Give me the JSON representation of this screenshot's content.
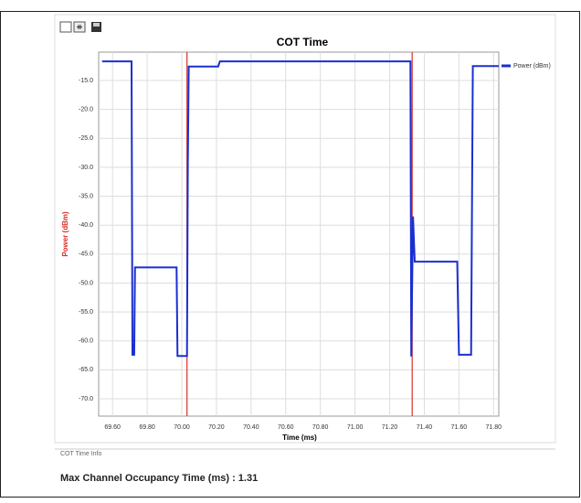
{
  "chart_data": {
    "type": "line",
    "title": "COT Time",
    "x_label": "Time (ms)",
    "y_label": "Power (dBm)",
    "xlim": [
      69.52,
      71.83
    ],
    "xticks": [
      {
        "value": 69.6,
        "label": "69.60"
      },
      {
        "value": 69.8,
        "label": "69.80"
      },
      {
        "value": 70.0,
        "label": "70.00"
      },
      {
        "value": 70.2,
        "label": "70.20"
      },
      {
        "value": 70.4,
        "label": "70.40"
      },
      {
        "value": 70.6,
        "label": "70.60"
      },
      {
        "value": 70.8,
        "label": "70.80"
      },
      {
        "value": 71.0,
        "label": "71.00"
      },
      {
        "value": 71.2,
        "label": "71.20"
      },
      {
        "value": 71.4,
        "label": "71.40"
      },
      {
        "value": 71.6,
        "label": "71.60"
      },
      {
        "value": 71.8,
        "label": "71.80"
      }
    ],
    "ylim": [
      -73,
      -10.1
    ],
    "yticks": [
      {
        "value": -15,
        "label": "-15.0"
      },
      {
        "value": -20,
        "label": "-20.0"
      },
      {
        "value": -25,
        "label": "-25.0"
      },
      {
        "value": -30,
        "label": "-30.0"
      },
      {
        "value": -35,
        "label": "-35.0"
      },
      {
        "value": -40,
        "label": "-40.0"
      },
      {
        "value": -45,
        "label": "-45.0"
      },
      {
        "value": -50,
        "label": "-50.0"
      },
      {
        "value": -55,
        "label": "-55.0"
      },
      {
        "value": -60,
        "label": "-60.0"
      },
      {
        "value": -65,
        "label": "-65.0"
      },
      {
        "value": -70,
        "label": "-70.0"
      }
    ],
    "grid": true,
    "legend": "right",
    "series": [
      {
        "name": "Power (dBm)",
        "color": "#1a2fd0",
        "x": [
          69.54,
          69.71,
          69.715,
          69.725,
          69.73,
          69.97,
          69.975,
          70.03,
          70.035,
          70.04,
          70.21,
          70.22,
          71.32,
          71.325,
          71.335,
          71.345,
          71.59,
          71.6,
          71.67,
          71.68,
          71.83
        ],
        "values": [
          -11.7,
          -11.7,
          -62.4,
          -62.4,
          -47.3,
          -47.3,
          -62.6,
          -62.6,
          -29.5,
          -12.6,
          -12.6,
          -11.7,
          -11.7,
          -62.7,
          -38.5,
          -46.3,
          -46.3,
          -62.4,
          -62.4,
          -12.5,
          -12.5
        ]
      }
    ],
    "vlines": {
      "color": "#d9302a",
      "values": [
        70.03,
        71.33
      ]
    }
  },
  "info": {
    "title": "COT Time Info",
    "result": "Max Channel Occupancy Time (ms) : 1.31"
  }
}
